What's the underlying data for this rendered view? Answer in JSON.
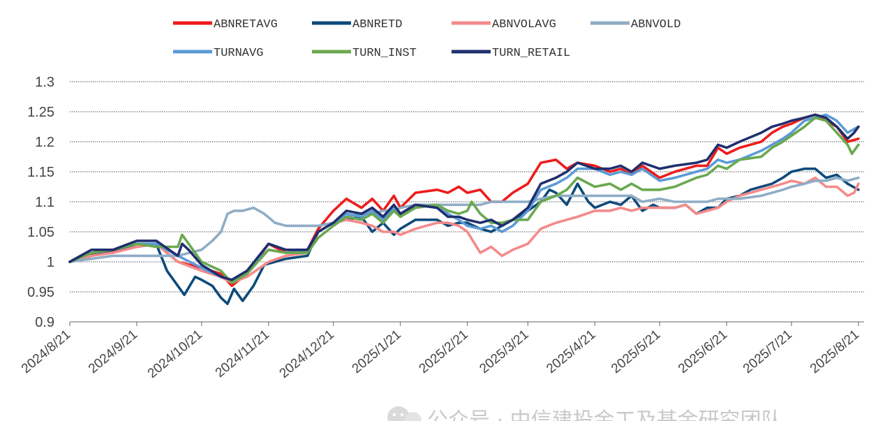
{
  "chart_data": {
    "type": "line",
    "title": "",
    "xlabel": "",
    "ylabel": "",
    "ylim": [
      0.9,
      1.3
    ],
    "yticks": [
      0.9,
      0.95,
      1,
      1.05,
      1.1,
      1.15,
      1.2,
      1.25,
      1.3
    ],
    "ytick_labels": [
      "0.9",
      "0.95",
      "1",
      "1.05",
      "1.1",
      "1.15",
      "1.2",
      "1.25",
      "1.3"
    ],
    "x_range_days": [
      0,
      365
    ],
    "xticks": [
      {
        "label": "2024/8/21",
        "day": 0
      },
      {
        "label": "2024/9/21",
        "day": 31
      },
      {
        "label": "2024/10/21",
        "day": 61
      },
      {
        "label": "2024/11/21",
        "day": 92
      },
      {
        "label": "2024/12/21",
        "day": 122
      },
      {
        "label": "2025/1/21",
        "day": 153
      },
      {
        "label": "2025/2/21",
        "day": 184
      },
      {
        "label": "2025/3/21",
        "day": 212
      },
      {
        "label": "2025/4/21",
        "day": 243
      },
      {
        "label": "2025/5/21",
        "day": 273
      },
      {
        "label": "2025/6/21",
        "day": 304
      },
      {
        "label": "2025/7/21",
        "day": 334
      },
      {
        "label": "2025/8/21",
        "day": 365
      }
    ],
    "grid": "horizontal dotted",
    "legend_position": "top",
    "series": [
      {
        "name": "ABNRETAVG",
        "color": "#ee1c1c",
        "x": [
          0,
          10,
          20,
          31,
          40,
          50,
          61,
          70,
          75,
          82,
          92,
          100,
          110,
          115,
          122,
          128,
          135,
          140,
          145,
          150,
          153,
          160,
          170,
          175,
          180,
          184,
          190,
          195,
          200,
          205,
          212,
          218,
          225,
          230,
          235,
          243,
          250,
          255,
          260,
          265,
          273,
          280,
          290,
          295,
          300,
          304,
          310,
          320,
          325,
          330,
          334,
          340,
          345,
          350,
          355,
          360,
          365
        ],
        "y": [
          1.0,
          1.012,
          1.018,
          1.025,
          1.03,
          1.0,
          0.99,
          0.98,
          0.96,
          0.98,
          1.03,
          1.015,
          1.02,
          1.055,
          1.085,
          1.105,
          1.09,
          1.105,
          1.085,
          1.11,
          1.09,
          1.115,
          1.12,
          1.115,
          1.125,
          1.115,
          1.12,
          1.1,
          1.1,
          1.115,
          1.13,
          1.165,
          1.17,
          1.155,
          1.165,
          1.16,
          1.15,
          1.155,
          1.145,
          1.16,
          1.14,
          1.15,
          1.16,
          1.16,
          1.19,
          1.18,
          1.19,
          1.2,
          1.215,
          1.225,
          1.23,
          1.24,
          1.245,
          1.235,
          1.225,
          1.2,
          1.205
        ]
      },
      {
        "name": "ABNRETD",
        "color": "#0e4a7a",
        "x": [
          0,
          10,
          20,
          31,
          40,
          45,
          50,
          53,
          58,
          61,
          66,
          70,
          73,
          76,
          80,
          85,
          90,
          95,
          100,
          110,
          115,
          122,
          128,
          135,
          140,
          145,
          150,
          153,
          160,
          170,
          175,
          180,
          184,
          190,
          195,
          200,
          205,
          212,
          218,
          222,
          225,
          230,
          235,
          240,
          243,
          250,
          255,
          260,
          265,
          270,
          273,
          280,
          285,
          290,
          295,
          300,
          304,
          310,
          315,
          320,
          325,
          330,
          334,
          340,
          345,
          350,
          355,
          360,
          365
        ],
        "y": [
          1.0,
          1.01,
          1.02,
          1.025,
          1.03,
          0.985,
          0.96,
          0.945,
          0.975,
          0.97,
          0.96,
          0.94,
          0.93,
          0.955,
          0.935,
          0.96,
          0.995,
          1.0,
          1.005,
          1.01,
          1.05,
          1.065,
          1.07,
          1.075,
          1.05,
          1.065,
          1.045,
          1.055,
          1.07,
          1.07,
          1.06,
          1.065,
          1.065,
          1.055,
          1.05,
          1.06,
          1.07,
          1.085,
          1.1,
          1.12,
          1.115,
          1.095,
          1.13,
          1.1,
          1.09,
          1.1,
          1.095,
          1.11,
          1.085,
          1.095,
          1.09,
          1.09,
          1.095,
          1.08,
          1.09,
          1.09,
          1.105,
          1.11,
          1.12,
          1.125,
          1.13,
          1.14,
          1.15,
          1.155,
          1.155,
          1.14,
          1.145,
          1.13,
          1.12
        ]
      },
      {
        "name": "ABNVOLAVG",
        "color": "#f48a8a",
        "x": [
          0,
          10,
          20,
          31,
          40,
          50,
          61,
          70,
          75,
          82,
          92,
          100,
          110,
          115,
          122,
          128,
          135,
          140,
          145,
          150,
          153,
          160,
          170,
          175,
          180,
          184,
          190,
          195,
          200,
          205,
          212,
          218,
          225,
          230,
          235,
          243,
          250,
          255,
          260,
          265,
          273,
          280,
          285,
          290,
          295,
          300,
          304,
          310,
          315,
          320,
          325,
          330,
          334,
          340,
          345,
          350,
          355,
          360,
          363,
          365
        ],
        "y": [
          1.0,
          1.01,
          1.015,
          1.025,
          1.03,
          1.0,
          0.985,
          0.975,
          0.965,
          0.975,
          1.0,
          1.01,
          1.015,
          1.05,
          1.065,
          1.07,
          1.065,
          1.06,
          1.05,
          1.05,
          1.045,
          1.055,
          1.065,
          1.065,
          1.06,
          1.05,
          1.015,
          1.025,
          1.01,
          1.02,
          1.03,
          1.055,
          1.065,
          1.07,
          1.075,
          1.085,
          1.085,
          1.09,
          1.085,
          1.09,
          1.09,
          1.09,
          1.095,
          1.08,
          1.085,
          1.09,
          1.1,
          1.11,
          1.115,
          1.12,
          1.125,
          1.13,
          1.135,
          1.13,
          1.14,
          1.125,
          1.125,
          1.11,
          1.115,
          1.13
        ]
      },
      {
        "name": "ABNVOLD",
        "color": "#8eadc6",
        "x": [
          0,
          10,
          20,
          31,
          40,
          50,
          61,
          66,
          70,
          73,
          76,
          80,
          85,
          90,
          95,
          100,
          110,
          115,
          122,
          128,
          135,
          140,
          145,
          150,
          153,
          160,
          170,
          175,
          180,
          184,
          190,
          195,
          200,
          205,
          212,
          218,
          225,
          230,
          235,
          243,
          250,
          255,
          260,
          265,
          273,
          280,
          290,
          295,
          300,
          304,
          310,
          320,
          325,
          330,
          334,
          340,
          345,
          350,
          355,
          360,
          365
        ],
        "y": [
          1.0,
          1.005,
          1.01,
          1.01,
          1.01,
          1.01,
          1.02,
          1.035,
          1.05,
          1.08,
          1.085,
          1.085,
          1.09,
          1.08,
          1.065,
          1.06,
          1.06,
          1.06,
          1.065,
          1.075,
          1.08,
          1.08,
          1.085,
          1.085,
          1.09,
          1.095,
          1.095,
          1.095,
          1.095,
          1.095,
          1.095,
          1.1,
          1.1,
          1.1,
          1.1,
          1.105,
          1.11,
          1.11,
          1.11,
          1.11,
          1.11,
          1.11,
          1.11,
          1.1,
          1.105,
          1.1,
          1.1,
          1.1,
          1.105,
          1.105,
          1.105,
          1.11,
          1.115,
          1.12,
          1.125,
          1.13,
          1.135,
          1.135,
          1.14,
          1.135,
          1.14
        ]
      },
      {
        "name": "TURNAVG",
        "color": "#5b9bd5",
        "x": [
          0,
          10,
          20,
          31,
          40,
          50,
          61,
          70,
          75,
          82,
          92,
          100,
          110,
          115,
          122,
          128,
          135,
          140,
          145,
          150,
          153,
          160,
          170,
          175,
          180,
          184,
          190,
          195,
          200,
          205,
          212,
          218,
          225,
          230,
          235,
          243,
          250,
          255,
          260,
          265,
          273,
          280,
          290,
          295,
          300,
          304,
          310,
          320,
          325,
          330,
          334,
          340,
          345,
          350,
          355,
          360,
          365
        ],
        "y": [
          1.0,
          1.015,
          1.02,
          1.03,
          1.03,
          1.01,
          0.99,
          0.975,
          0.97,
          0.985,
          1.02,
          1.015,
          1.02,
          1.05,
          1.065,
          1.08,
          1.075,
          1.085,
          1.07,
          1.09,
          1.08,
          1.095,
          1.09,
          1.08,
          1.07,
          1.06,
          1.055,
          1.06,
          1.05,
          1.06,
          1.085,
          1.12,
          1.13,
          1.14,
          1.155,
          1.155,
          1.145,
          1.15,
          1.145,
          1.155,
          1.135,
          1.14,
          1.15,
          1.155,
          1.17,
          1.165,
          1.17,
          1.185,
          1.195,
          1.205,
          1.215,
          1.235,
          1.24,
          1.245,
          1.235,
          1.215,
          1.225
        ]
      },
      {
        "name": "TURN_INST",
        "color": "#6aa84f",
        "x": [
          0,
          10,
          20,
          31,
          40,
          50,
          52,
          55,
          61,
          70,
          75,
          82,
          92,
          100,
          110,
          115,
          122,
          128,
          135,
          140,
          145,
          150,
          153,
          160,
          170,
          175,
          180,
          184,
          186,
          190,
          195,
          200,
          205,
          212,
          218,
          225,
          230,
          235,
          243,
          250,
          255,
          260,
          265,
          273,
          280,
          290,
          295,
          300,
          304,
          310,
          320,
          325,
          330,
          334,
          340,
          345,
          350,
          355,
          360,
          362,
          365
        ],
        "y": [
          1.0,
          1.015,
          1.02,
          1.03,
          1.025,
          1.025,
          1.045,
          1.03,
          1.0,
          0.985,
          0.965,
          0.98,
          1.02,
          1.015,
          1.015,
          1.04,
          1.06,
          1.075,
          1.07,
          1.08,
          1.065,
          1.085,
          1.075,
          1.09,
          1.095,
          1.085,
          1.08,
          1.085,
          1.1,
          1.08,
          1.065,
          1.065,
          1.07,
          1.07,
          1.1,
          1.11,
          1.12,
          1.14,
          1.125,
          1.13,
          1.12,
          1.13,
          1.12,
          1.12,
          1.125,
          1.14,
          1.145,
          1.16,
          1.155,
          1.17,
          1.175,
          1.19,
          1.2,
          1.21,
          1.225,
          1.24,
          1.235,
          1.215,
          1.195,
          1.18,
          1.195
        ]
      },
      {
        "name": "TURN_RETAIL",
        "color": "#1f2f6e",
        "x": [
          0,
          10,
          20,
          31,
          40,
          50,
          52,
          55,
          61,
          70,
          75,
          82,
          92,
          100,
          110,
          115,
          122,
          128,
          135,
          140,
          145,
          150,
          153,
          160,
          170,
          175,
          180,
          184,
          190,
          195,
          200,
          205,
          212,
          218,
          225,
          230,
          235,
          243,
          250,
          255,
          260,
          265,
          273,
          280,
          290,
          295,
          300,
          304,
          310,
          320,
          325,
          330,
          334,
          340,
          345,
          350,
          355,
          360,
          363,
          365
        ],
        "y": [
          1.0,
          1.02,
          1.02,
          1.035,
          1.035,
          1.01,
          1.03,
          1.02,
          0.995,
          0.975,
          0.97,
          0.985,
          1.03,
          1.02,
          1.02,
          1.05,
          1.065,
          1.085,
          1.08,
          1.09,
          1.075,
          1.095,
          1.08,
          1.095,
          1.09,
          1.075,
          1.075,
          1.07,
          1.065,
          1.07,
          1.06,
          1.07,
          1.09,
          1.13,
          1.14,
          1.15,
          1.165,
          1.155,
          1.155,
          1.16,
          1.15,
          1.165,
          1.155,
          1.16,
          1.165,
          1.17,
          1.195,
          1.19,
          1.2,
          1.215,
          1.225,
          1.23,
          1.235,
          1.24,
          1.245,
          1.24,
          1.225,
          1.205,
          1.215,
          1.225
        ]
      }
    ]
  },
  "watermark": {
    "text": "公众号 · 中信建投金工及基金研究团队",
    "icon": "wechat-icon"
  }
}
